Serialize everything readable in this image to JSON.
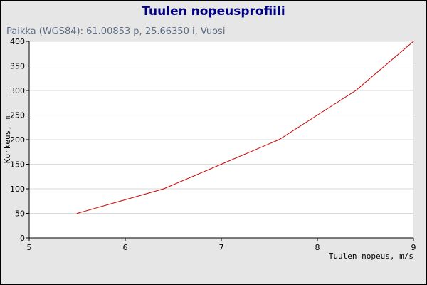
{
  "header": {
    "title": "Tuulen nopeusprofiili",
    "subtitle": "Paikka (WGS84): 61.00853 p, 25.66350 i, Vuosi"
  },
  "colors": {
    "background": "#e6e6e6",
    "plot_background": "#ffffff",
    "title": "#000080",
    "subtitle": "#5a6a80",
    "grid": "#d9d9d9",
    "series": "#cc0000"
  },
  "chart_data": {
    "type": "line",
    "title": "Tuulen nopeusprofiili",
    "subtitle": "Paikka (WGS84): 61.00853 p, 25.66350 i, Vuosi",
    "xlabel": "Tuulen nopeus, m/s",
    "ylabel": "Korkeus, m",
    "xlim": [
      5,
      9
    ],
    "ylim": [
      0,
      400
    ],
    "xticks": [
      5,
      6,
      7,
      8,
      9
    ],
    "yticks": [
      0,
      50,
      100,
      150,
      200,
      250,
      300,
      350,
      400
    ],
    "grid": "horizontal",
    "x": [
      5.5,
      5.95,
      6.4,
      7.0,
      7.6,
      8.0,
      8.4,
      9.0
    ],
    "y": [
      50,
      75,
      100,
      150,
      200,
      250,
      300,
      400
    ]
  }
}
